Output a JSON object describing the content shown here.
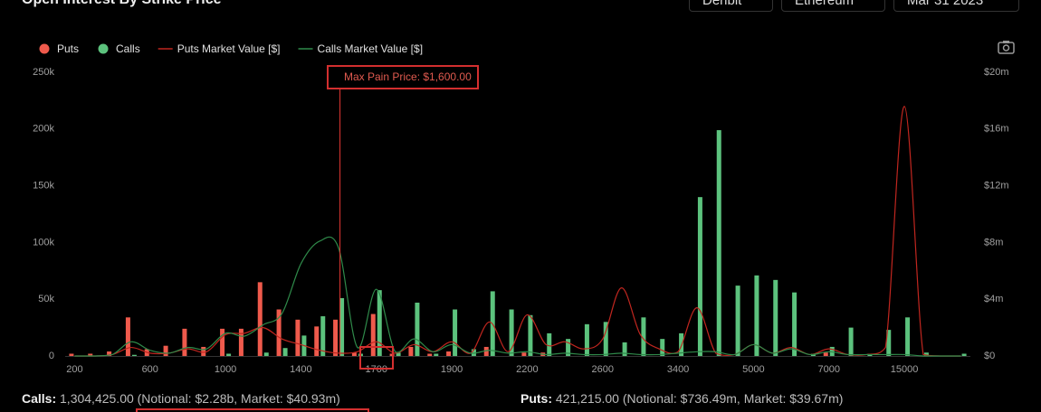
{
  "header": {
    "title": "Open Interest By Strike Price",
    "filters": [
      "Deribit",
      "Ethereum",
      "Mar 31 2023"
    ]
  },
  "chart_data": {
    "type": "bar_line",
    "annotation": "Max Pain Price: $1,600.00",
    "categories": [
      "200",
      null,
      null,
      null,
      "600",
      null,
      null,
      null,
      "1000",
      null,
      null,
      null,
      "1400",
      null,
      null,
      null,
      "1700",
      null,
      null,
      null,
      "1900",
      null,
      null,
      null,
      "2200",
      null,
      null,
      null,
      "2600",
      null,
      null,
      null,
      "3400",
      null,
      null,
      null,
      "5000",
      null,
      null,
      null,
      "7000",
      null,
      null,
      null,
      "15000",
      null,
      null,
      null
    ],
    "series": [
      {
        "name": "Puts",
        "kind": "bar",
        "color": "#ef5a4c",
        "values": [
          2,
          2,
          4,
          34,
          6,
          9,
          24,
          8,
          24,
          24,
          65,
          41,
          32,
          26,
          32,
          3,
          37,
          2,
          8,
          2,
          4,
          0,
          8,
          0,
          3,
          3,
          0,
          0,
          0,
          0,
          0,
          0,
          0,
          0,
          0,
          0,
          0,
          0,
          0,
          0,
          3,
          0,
          0,
          0,
          0,
          0,
          0,
          0
        ]
      },
      {
        "name": "Calls",
        "kind": "bar",
        "color": "#5cc27d",
        "values": [
          0,
          0,
          0,
          1,
          0,
          0,
          0,
          0,
          2,
          0,
          3,
          7,
          18,
          35,
          51,
          2,
          58,
          3,
          47,
          2,
          41,
          6,
          57,
          41,
          36,
          20,
          15,
          28,
          30,
          12,
          34,
          15,
          20,
          140,
          199,
          62,
          71,
          67,
          56,
          2,
          8,
          25,
          2,
          23,
          34,
          3,
          0,
          2
        ]
      },
      {
        "name": "Puts Market Value [$]",
        "kind": "line",
        "axis": "y2",
        "color": "#c0261f",
        "values": [
          0,
          0,
          0.1,
          0.6,
          0.2,
          0.2,
          0.5,
          0.3,
          1.5,
          1.6,
          2.0,
          1.2,
          0.8,
          0.4,
          0.2,
          0.3,
          1.0,
          0.2,
          0.8,
          0.3,
          1.0,
          0.2,
          2.4,
          0.3,
          2.9,
          0.8,
          1.0,
          0.5,
          1.2,
          4.8,
          1.5,
          0.5,
          0.3,
          3.4,
          0.2,
          0.1,
          0.8,
          0.2,
          0.6,
          0.1,
          0.5,
          0.1,
          0.1,
          0.6,
          17.6,
          0.1,
          0,
          0
        ]
      },
      {
        "name": "Calls Market Value [$]",
        "kind": "line",
        "axis": "y2",
        "color": "#2f8a4a",
        "values": [
          0,
          0,
          0.1,
          1.0,
          0.4,
          0.2,
          0.6,
          0.5,
          1.6,
          1.4,
          2.2,
          3.0,
          6.5,
          8.1,
          7.6,
          0.6,
          4.7,
          0.3,
          1.2,
          0.3,
          0.8,
          0.2,
          0.4,
          0.2,
          0.3,
          0.1,
          0.2,
          0.1,
          0.1,
          0.2,
          0.1,
          0.1,
          0.2,
          0.3,
          0.3,
          0.1,
          0.8,
          0.2,
          0.5,
          0.1,
          0.3,
          0.1,
          0.1,
          0.1,
          0.1,
          0,
          0,
          0
        ]
      }
    ],
    "ylim": [
      0,
      250
    ],
    "yticks": [
      0,
      {
        "value": 50,
        "label": "50k"
      },
      {
        "value": 100,
        "label": "100k"
      },
      {
        "value": 150,
        "label": "150k"
      },
      {
        "value": 200,
        "label": "200k"
      },
      {
        "value": 250,
        "label": "250k"
      }
    ],
    "y2lim": [
      0,
      20
    ],
    "y2ticks": [
      {
        "value": 0,
        "label": "$0"
      },
      {
        "value": 4,
        "label": "$4m"
      },
      {
        "value": 8,
        "label": "$8m"
      },
      {
        "value": 12,
        "label": "$12m"
      },
      {
        "value": 16,
        "label": "$16m"
      },
      {
        "value": 20,
        "label": "$20m"
      }
    ],
    "grid": false,
    "legend": "top-left"
  },
  "summary": {
    "calls": {
      "label": "Calls:",
      "text": "1,304,425.00 (Notional: $2.28b, Market: $40.93m)"
    },
    "puts": {
      "label": "Puts:",
      "text": "421,215.00 (Notional: $736.49m, Market: $39.67m)"
    }
  }
}
